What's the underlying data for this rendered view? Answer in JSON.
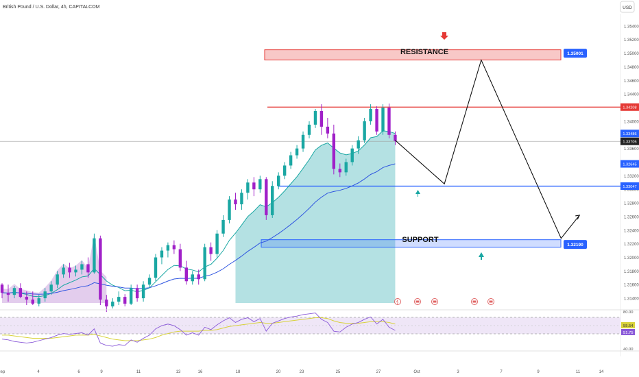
{
  "header": {
    "title": "British Pound / U.S. Dollar, 4h, CAPITALCOM",
    "currency": "USD"
  },
  "annotations": {
    "resistance_label": "RESISTANCE",
    "support_label": "SUPPORT"
  },
  "colors": {
    "bull": "#1aa7a3",
    "bear": "#a020c8",
    "ma_fast": "#1aa7a3",
    "ma_slow": "#2f55e0",
    "resistance": "#e53935",
    "support": "#2962ff",
    "rsi": "#8a5ad8",
    "rsi_signal": "#d8d23a"
  },
  "chart_data": [
    {
      "type": "candlestick",
      "symbol": "GBPUSD",
      "timeframe": "4h",
      "y_ticks": [
        1.314,
        1.316,
        1.318,
        1.32,
        1.322,
        1.324,
        1.326,
        1.328,
        1.33,
        1.332,
        1.334,
        1.336,
        1.338,
        1.34,
        1.342,
        1.344,
        1.346,
        1.348,
        1.35,
        1.352,
        1.354
      ],
      "x_ticks": [
        "Sep",
        "4",
        "6",
        "9",
        "11",
        "13",
        "16",
        "18",
        "20",
        "23",
        "25",
        "27",
        "Oct",
        "3",
        "7",
        "9",
        "11",
        "14"
      ],
      "ylim": [
        1.3125,
        1.3558
      ],
      "candles": [
        [
          1.316,
          1.3162,
          1.314,
          1.3148
        ],
        [
          1.3148,
          1.316,
          1.3135,
          1.3145
        ],
        [
          1.3145,
          1.3158,
          1.314,
          1.3155
        ],
        [
          1.3155,
          1.3162,
          1.314,
          1.3142
        ],
        [
          1.3142,
          1.315,
          1.313,
          1.3138
        ],
        [
          1.3138,
          1.315,
          1.313,
          1.3132
        ],
        [
          1.3132,
          1.3145,
          1.3128,
          1.314
        ],
        [
          1.314,
          1.3155,
          1.3135,
          1.315
        ],
        [
          1.315,
          1.3165,
          1.3145,
          1.316
        ],
        [
          1.316,
          1.318,
          1.3155,
          1.3175
        ],
        [
          1.3175,
          1.319,
          1.317,
          1.3185
        ],
        [
          1.3185,
          1.3192,
          1.317,
          1.3178
        ],
        [
          1.3178,
          1.3188,
          1.3172,
          1.3182
        ],
        [
          1.3182,
          1.3195,
          1.3175,
          1.319
        ],
        [
          1.319,
          1.32,
          1.317,
          1.3178
        ],
        [
          1.3178,
          1.3235,
          1.3176,
          1.3228
        ],
        [
          1.3228,
          1.3232,
          1.313,
          1.3138
        ],
        [
          1.3138,
          1.3145,
          1.312,
          1.3128
        ],
        [
          1.3128,
          1.314,
          1.3125,
          1.3135
        ],
        [
          1.3135,
          1.315,
          1.313,
          1.3142
        ],
        [
          1.3142,
          1.3146,
          1.3128,
          1.3132
        ],
        [
          1.3132,
          1.316,
          1.313,
          1.3155
        ],
        [
          1.3155,
          1.316,
          1.3135,
          1.314
        ],
        [
          1.314,
          1.3165,
          1.3135,
          1.316
        ],
        [
          1.316,
          1.3175,
          1.3155,
          1.317
        ],
        [
          1.317,
          1.3205,
          1.3165,
          1.32
        ],
        [
          1.32,
          1.3215,
          1.319,
          1.321
        ],
        [
          1.321,
          1.3222,
          1.32,
          1.3218
        ],
        [
          1.3218,
          1.3225,
          1.3205,
          1.3212
        ],
        [
          1.3212,
          1.322,
          1.318,
          1.3185
        ],
        [
          1.3185,
          1.3195,
          1.316,
          1.3165
        ],
        [
          1.3165,
          1.318,
          1.316,
          1.3175
        ],
        [
          1.3175,
          1.3182,
          1.316,
          1.3168
        ],
        [
          1.3168,
          1.322,
          1.3165,
          1.3215
        ],
        [
          1.3215,
          1.3222,
          1.3195,
          1.3205
        ],
        [
          1.3205,
          1.324,
          1.32,
          1.3235
        ],
        [
          1.3235,
          1.3262,
          1.323,
          1.3255
        ],
        [
          1.3255,
          1.329,
          1.325,
          1.3285
        ],
        [
          1.3285,
          1.3295,
          1.327,
          1.3278
        ],
        [
          1.3278,
          1.33,
          1.327,
          1.3295
        ],
        [
          1.3295,
          1.3315,
          1.3285,
          1.331
        ],
        [
          1.331,
          1.3318,
          1.329,
          1.33
        ],
        [
          1.33,
          1.332,
          1.3295,
          1.3315
        ],
        [
          1.3315,
          1.3318,
          1.3255,
          1.3262
        ],
        [
          1.3262,
          1.3312,
          1.3258,
          1.3305
        ],
        [
          1.3305,
          1.3325,
          1.33,
          1.332
        ],
        [
          1.332,
          1.334,
          1.3315,
          1.3335
        ],
        [
          1.3335,
          1.3355,
          1.333,
          1.335
        ],
        [
          1.335,
          1.3365,
          1.3345,
          1.336
        ],
        [
          1.336,
          1.3385,
          1.3355,
          1.338
        ],
        [
          1.338,
          1.34,
          1.3375,
          1.3395
        ],
        [
          1.3395,
          1.3418,
          1.339,
          1.3415
        ],
        [
          1.3415,
          1.3425,
          1.338,
          1.3392
        ],
        [
          1.3392,
          1.3405,
          1.3375,
          1.3382
        ],
        [
          1.3382,
          1.3395,
          1.3322,
          1.333
        ],
        [
          1.333,
          1.3338,
          1.3318,
          1.3325
        ],
        [
          1.3325,
          1.3345,
          1.332,
          1.334
        ],
        [
          1.334,
          1.3365,
          1.3335,
          1.336
        ],
        [
          1.336,
          1.3378,
          1.3352,
          1.3372
        ],
        [
          1.3372,
          1.3405,
          1.3368,
          1.34
        ],
        [
          1.34,
          1.3425,
          1.3395,
          1.3418
        ],
        [
          1.3418,
          1.3422,
          1.338,
          1.3385
        ],
        [
          1.3385,
          1.3425,
          1.338,
          1.342
        ],
        [
          1.342,
          1.3426,
          1.3375,
          1.338
        ],
        [
          1.338,
          1.3385,
          1.3365,
          1.3371
        ]
      ],
      "current_price": "1.33705",
      "price_labels": {
        "resistance_box": "1.35001",
        "resistance_line": "1.34208",
        "current": "1.33705",
        "ma_fast": "1.33486",
        "support_line": "1.33047",
        "ma_slow": "1.32645",
        "support_box": "1.32190"
      },
      "levels": {
        "resistance_zone": [
          1.349,
          1.3505
        ],
        "resistance_line": 1.34208,
        "support_line": 1.33047,
        "support_zone": [
          1.3215,
          1.3226
        ]
      },
      "projection": [
        [
          64,
          1.3372
        ],
        [
          72,
          1.3308
        ],
        [
          78,
          1.349
        ],
        [
          91,
          1.3228
        ],
        [
          94,
          1.3262
        ]
      ]
    },
    {
      "type": "line",
      "name": "RSI",
      "y_ticks": [
        "80.00",
        "55.54",
        "51.75",
        "40.00"
      ],
      "ylim": [
        30,
        82
      ],
      "values": [
        45,
        44,
        42,
        41,
        40,
        41,
        43,
        45,
        47,
        50,
        52,
        51,
        52,
        53,
        50,
        58,
        40,
        37,
        36,
        38,
        37,
        44,
        41,
        46,
        50,
        58,
        62,
        64,
        62,
        57,
        50,
        53,
        50,
        60,
        57,
        63,
        68,
        72,
        66,
        70,
        72,
        67,
        71,
        55,
        65,
        68,
        71,
        73,
        74,
        76,
        77,
        78,
        70,
        66,
        55,
        54,
        60,
        64,
        66,
        70,
        73,
        64,
        70,
        60,
        56
      ],
      "signal": [
        50,
        50,
        49,
        48,
        47,
        46,
        46,
        46,
        46,
        47,
        48,
        49,
        50,
        50,
        50,
        51,
        49,
        47,
        45,
        44,
        43,
        43,
        43,
        44,
        45,
        47,
        50,
        52,
        54,
        55,
        55,
        55,
        55,
        56,
        56,
        57,
        59,
        61,
        62,
        63,
        64,
        65,
        66,
        65,
        65,
        66,
        67,
        68,
        69,
        70,
        71,
        72,
        72,
        71,
        68,
        66,
        65,
        65,
        65,
        66,
        67,
        67,
        67,
        66,
        64
      ]
    }
  ]
}
